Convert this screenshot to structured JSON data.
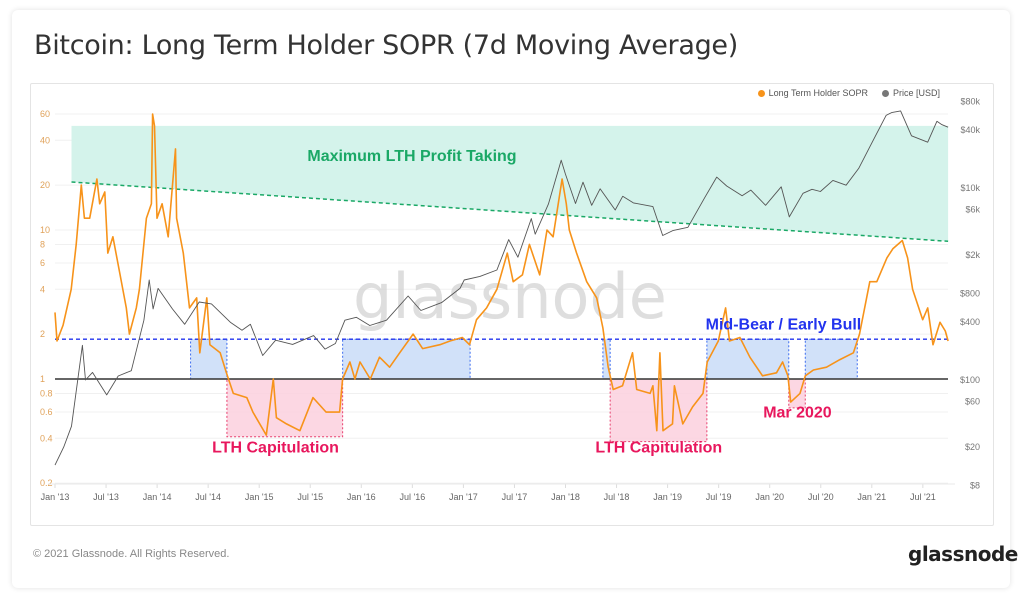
{
  "title": "Bitcoin: Long Term Holder SOPR (7d Moving Average)",
  "footer": "© 2021 Glassnode. All Rights Reserved.",
  "logo": "glassnode",
  "watermark": "glassnode",
  "colors": {
    "sopr": "#f7931a",
    "price": "#555555",
    "profit_zone": "#d4f3eb",
    "profit_line": "#1aa866",
    "bear_line": "#2233ee",
    "bear_fill": "#c9dcf8",
    "capit_fill": "#fbd0de",
    "capit_text": "#e8175d",
    "one_line": "#333333"
  },
  "chart_data": {
    "type": "line",
    "title": "Bitcoin: Long Term Holder SOPR (7d Moving Average)",
    "legend": {
      "position": "top-right",
      "entries": [
        "Long Term Holder SOPR",
        "Price [USD]"
      ]
    },
    "x_ticks": [
      "Jan '13",
      "Jul '13",
      "Jan '14",
      "Jul '14",
      "Jan '15",
      "Jul '15",
      "Jan '16",
      "Jul '16",
      "Jan '17",
      "Jul '17",
      "Jan '18",
      "Jul '18",
      "Jan '19",
      "Jul '19",
      "Jan '20",
      "Jul '20",
      "Jan '21",
      "Jul '21"
    ],
    "y_left": {
      "scale": "log",
      "range": [
        0.2,
        60
      ],
      "ticks": [
        "60",
        "40",
        "20",
        "10",
        "8",
        "6",
        "4",
        "2",
        "1",
        "0.8",
        "0.6",
        "0.4",
        "0.2"
      ]
    },
    "y_right": {
      "scale": "log",
      "range": [
        8,
        80000
      ],
      "ticks": [
        "$80k",
        "$40k",
        "$10k",
        "$6k",
        "$2k",
        "$800",
        "$400",
        "$100",
        "$60",
        "$20",
        "$8"
      ]
    },
    "grid": true,
    "series": [
      {
        "name": "Long Term Holder SOPR",
        "axis": "left",
        "points": [
          [
            "2013-01-01",
            2.8
          ],
          [
            "2013-01-08",
            1.8
          ],
          [
            "2013-01-30",
            2.3
          ],
          [
            "2013-02-28",
            4
          ],
          [
            "2013-03-18",
            8
          ],
          [
            "2013-04-05",
            20
          ],
          [
            "2013-04-16",
            12
          ],
          [
            "2013-05-05",
            12
          ],
          [
            "2013-05-31",
            22
          ],
          [
            "2013-06-10",
            15
          ],
          [
            "2013-06-28",
            18
          ],
          [
            "2013-07-09",
            7
          ],
          [
            "2013-07-27",
            9
          ],
          [
            "2013-08-22",
            5
          ],
          [
            "2013-09-13",
            3
          ],
          [
            "2013-09-24",
            2
          ],
          [
            "2013-10-19",
            3
          ],
          [
            "2013-10-30",
            4
          ],
          [
            "2013-11-24",
            12
          ],
          [
            "2013-12-12",
            15
          ],
          [
            "2013-12-16",
            60
          ],
          [
            "2013-12-23",
            50
          ],
          [
            "2014-01-01",
            12
          ],
          [
            "2014-01-19",
            15
          ],
          [
            "2014-02-10",
            9
          ],
          [
            "2014-03-08",
            35
          ],
          [
            "2014-03-12",
            12
          ],
          [
            "2014-04-05",
            7
          ],
          [
            "2014-04-27",
            3
          ],
          [
            "2014-05-23",
            3.5
          ],
          [
            "2014-06-03",
            1.5
          ],
          [
            "2014-06-28",
            3.5
          ],
          [
            "2014-07-09",
            1.7
          ],
          [
            "2014-08-15",
            1.5
          ],
          [
            "2014-09-06",
            1.1
          ],
          [
            "2014-10-01",
            0.8
          ],
          [
            "2014-11-18",
            0.75
          ],
          [
            "2014-12-10",
            0.6
          ],
          [
            "2015-01-27",
            0.42
          ],
          [
            "2015-02-21",
            1.0
          ],
          [
            "2015-03-04",
            0.55
          ],
          [
            "2015-04-09",
            0.5
          ],
          [
            "2015-05-27",
            0.45
          ],
          [
            "2015-07-13",
            0.75
          ],
          [
            "2015-08-29",
            0.6
          ],
          [
            "2015-10-16",
            0.6
          ],
          [
            "2015-10-27",
            1.0
          ],
          [
            "2015-11-22",
            1.3
          ],
          [
            "2015-12-10",
            1.0
          ],
          [
            "2015-12-28",
            1.3
          ],
          [
            "2016-02-03",
            1.0
          ],
          [
            "2016-03-07",
            1.4
          ],
          [
            "2016-04-12",
            1.2
          ],
          [
            "2016-05-18",
            1.5
          ],
          [
            "2016-07-05",
            2.0
          ],
          [
            "2016-08-08",
            1.6
          ],
          [
            "2016-10-09",
            1.7
          ],
          [
            "2016-11-14",
            1.8
          ],
          [
            "2016-12-28",
            1.9
          ],
          [
            "2017-01-23",
            1.7
          ],
          [
            "2017-02-17",
            2.5
          ],
          [
            "2017-03-25",
            3.0
          ],
          [
            "2017-05-01",
            4.0
          ],
          [
            "2017-06-07",
            7
          ],
          [
            "2017-06-28",
            4.5
          ],
          [
            "2017-07-31",
            5
          ],
          [
            "2017-08-25",
            8
          ],
          [
            "2017-10-01",
            5
          ],
          [
            "2017-10-27",
            10
          ],
          [
            "2017-11-18",
            9
          ],
          [
            "2017-12-20",
            22
          ],
          [
            "2018-01-04",
            15
          ],
          [
            "2018-01-15",
            10
          ],
          [
            "2018-02-10",
            7
          ],
          [
            "2018-03-18",
            4.5
          ],
          [
            "2018-04-23",
            3.5
          ],
          [
            "2018-05-15",
            2.2
          ],
          [
            "2018-06-03",
            1.2
          ],
          [
            "2018-06-21",
            0.85
          ],
          [
            "2018-07-24",
            0.9
          ],
          [
            "2018-08-29",
            1.5
          ],
          [
            "2018-09-13",
            0.85
          ],
          [
            "2018-10-31",
            0.8
          ],
          [
            "2018-11-10",
            0.9
          ],
          [
            "2018-11-24",
            0.45
          ],
          [
            "2018-12-05",
            1.5
          ],
          [
            "2018-12-16",
            0.45
          ],
          [
            "2019-01-19",
            0.5
          ],
          [
            "2019-01-26",
            0.9
          ],
          [
            "2019-02-25",
            0.5
          ],
          [
            "2019-04-01",
            0.65
          ],
          [
            "2019-05-08",
            0.8
          ],
          [
            "2019-05-23",
            1.3
          ],
          [
            "2019-07-02",
            1.8
          ],
          [
            "2019-07-28",
            3.0
          ],
          [
            "2019-08-11",
            1.8
          ],
          [
            "2019-09-17",
            1.9
          ],
          [
            "2019-10-23",
            1.4
          ],
          [
            "2019-12-07",
            1.05
          ],
          [
            "2020-01-26",
            1.1
          ],
          [
            "2020-02-17",
            1.3
          ],
          [
            "2020-03-07",
            1.05
          ],
          [
            "2020-03-17",
            0.7
          ],
          [
            "2020-04-19",
            0.8
          ],
          [
            "2020-05-08",
            1.05
          ],
          [
            "2020-06-06",
            1.15
          ],
          [
            "2020-07-23",
            1.2
          ],
          [
            "2020-09-09",
            1.35
          ],
          [
            "2020-10-27",
            1.5
          ],
          [
            "2020-11-18",
            2.0
          ],
          [
            "2020-12-25",
            4.5
          ],
          [
            "2021-01-19",
            4.5
          ],
          [
            "2021-02-24",
            6.5
          ],
          [
            "2021-03-18",
            7.5
          ],
          [
            "2021-04-20",
            8.5
          ],
          [
            "2021-05-09",
            6.5
          ],
          [
            "2021-05-27",
            4
          ],
          [
            "2021-07-02",
            2.5
          ],
          [
            "2021-07-20",
            3
          ],
          [
            "2021-08-08",
            1.7
          ],
          [
            "2021-09-02",
            2.4
          ],
          [
            "2021-09-21",
            2.1
          ],
          [
            "2021-10-01",
            1.8
          ]
        ]
      },
      {
        "name": "Price [USD]",
        "axis": "right",
        "points": [
          [
            "2013-01-01",
            13
          ],
          [
            "2013-02-01",
            20
          ],
          [
            "2013-03-01",
            33
          ],
          [
            "2013-04-09",
            230
          ],
          [
            "2013-04-20",
            100
          ],
          [
            "2013-05-15",
            120
          ],
          [
            "2013-07-05",
            70
          ],
          [
            "2013-08-15",
            110
          ],
          [
            "2013-10-01",
            125
          ],
          [
            "2013-11-15",
            420
          ],
          [
            "2013-12-04",
            1100
          ],
          [
            "2013-12-18",
            550
          ],
          [
            "2014-01-05",
            900
          ],
          [
            "2014-02-25",
            550
          ],
          [
            "2014-04-10",
            380
          ],
          [
            "2014-06-01",
            650
          ],
          [
            "2014-07-15",
            620
          ],
          [
            "2014-09-20",
            400
          ],
          [
            "2014-11-01",
            330
          ],
          [
            "2014-12-01",
            380
          ],
          [
            "2015-01-14",
            180
          ],
          [
            "2015-03-01",
            260
          ],
          [
            "2015-05-01",
            235
          ],
          [
            "2015-07-15",
            290
          ],
          [
            "2015-08-25",
            210
          ],
          [
            "2015-10-01",
            240
          ],
          [
            "2015-11-04",
            420
          ],
          [
            "2015-12-15",
            450
          ],
          [
            "2016-02-01",
            370
          ],
          [
            "2016-04-01",
            420
          ],
          [
            "2016-06-17",
            750
          ],
          [
            "2016-08-02",
            530
          ],
          [
            "2016-10-15",
            640
          ],
          [
            "2016-12-20",
            900
          ],
          [
            "2017-01-04",
            1100
          ],
          [
            "2017-03-01",
            1200
          ],
          [
            "2017-05-01",
            1400
          ],
          [
            "2017-06-12",
            2900
          ],
          [
            "2017-07-15",
            1900
          ],
          [
            "2017-09-01",
            4800
          ],
          [
            "2017-09-15",
            3300
          ],
          [
            "2017-11-01",
            6800
          ],
          [
            "2017-12-17",
            19500
          ],
          [
            "2018-01-01",
            14000
          ],
          [
            "2018-02-06",
            6900
          ],
          [
            "2018-03-05",
            11500
          ],
          [
            "2018-04-05",
            6600
          ],
          [
            "2018-05-05",
            9800
          ],
          [
            "2018-06-28",
            5900
          ],
          [
            "2018-07-25",
            8200
          ],
          [
            "2018-09-01",
            7000
          ],
          [
            "2018-11-10",
            6400
          ],
          [
            "2018-12-15",
            3200
          ],
          [
            "2019-01-20",
            3600
          ],
          [
            "2019-03-15",
            3900
          ],
          [
            "2019-05-15",
            8000
          ],
          [
            "2019-06-26",
            13000
          ],
          [
            "2019-08-01",
            10500
          ],
          [
            "2019-09-25",
            8300
          ],
          [
            "2019-10-26",
            9500
          ],
          [
            "2019-12-18",
            6600
          ],
          [
            "2020-02-12",
            10300
          ],
          [
            "2020-03-12",
            5000
          ],
          [
            "2020-04-30",
            8800
          ],
          [
            "2020-06-01",
            9700
          ],
          [
            "2020-07-01",
            9200
          ],
          [
            "2020-08-15",
            12000
          ],
          [
            "2020-10-01",
            10700
          ],
          [
            "2020-11-15",
            16000
          ],
          [
            "2020-12-31",
            29000
          ],
          [
            "2021-02-21",
            57000
          ],
          [
            "2021-03-13",
            61000
          ],
          [
            "2021-04-14",
            63500
          ],
          [
            "2021-05-23",
            35000
          ],
          [
            "2021-07-20",
            30000
          ],
          [
            "2021-08-22",
            49500
          ],
          [
            "2021-09-07",
            46000
          ],
          [
            "2021-10-01",
            43000
          ]
        ]
      }
    ],
    "reference_lines": [
      {
        "type": "horizontal",
        "value": 1,
        "style": "solid"
      },
      {
        "type": "horizontal",
        "value": 1.85,
        "style": "dashed",
        "color": "bear_line"
      },
      {
        "type": "trend",
        "from": [
          "2013-03-01",
          21
        ],
        "to": [
          "2021-10-01",
          8.4
        ],
        "style": "dashed",
        "color": "profit_line"
      }
    ],
    "regions": [
      {
        "kind": "profit",
        "from": "2013-03-01",
        "to": "2021-10-01",
        "top": 50
      },
      {
        "kind": "bear",
        "from": "2014-05-01",
        "to": "2014-09-08",
        "low": 1,
        "high": 1.85
      },
      {
        "kind": "capit",
        "from": "2014-09-08",
        "to": "2015-10-27",
        "low": 0.41,
        "high": 1
      },
      {
        "kind": "bear",
        "from": "2015-10-27",
        "to": "2017-01-25",
        "low": 1,
        "high": 1.85
      },
      {
        "kind": "bear",
        "from": "2018-05-15",
        "to": "2018-06-10",
        "low": 1,
        "high": 1.85
      },
      {
        "kind": "capit",
        "from": "2018-06-10",
        "to": "2019-05-22",
        "low": 0.38,
        "high": 1
      },
      {
        "kind": "bear",
        "from": "2019-05-22",
        "to": "2020-03-10",
        "low": 1,
        "high": 1.85
      },
      {
        "kind": "capit",
        "from": "2020-03-10",
        "to": "2020-05-08",
        "low": 0.64,
        "high": 1
      },
      {
        "kind": "bear",
        "from": "2020-05-08",
        "to": "2020-11-10",
        "low": 1,
        "high": 1.85
      }
    ],
    "annotations": [
      {
        "text": "Maximum LTH Profit Taking",
        "date": "2016-07-01",
        "value": 29,
        "color": "profit_line"
      },
      {
        "text": "LTH Capitulation",
        "date": "2015-03-01",
        "value": 0.32,
        "color": "capit_text"
      },
      {
        "text": "LTH Capitulation",
        "date": "2018-12-01",
        "value": 0.32,
        "color": "capit_text"
      },
      {
        "text": "Mid-Bear / Early Bull",
        "date": "2020-02-20",
        "value": 2.15,
        "color": "bear_line"
      },
      {
        "text": "Mar 2020",
        "date": "2020-04-10",
        "value": 0.55,
        "color": "capit_text"
      }
    ]
  }
}
